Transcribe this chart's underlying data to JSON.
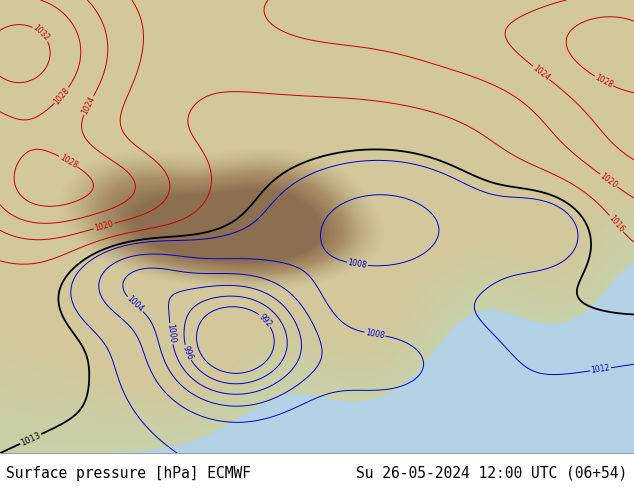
{
  "bottom_left_text": "Surface pressure [hPa] ECMWF",
  "bottom_right_text": "Su 26-05-2024 12:00 UTC (06+54)",
  "text_fontsize": 10.5,
  "text_color": "#000000",
  "background_color": "#ffffff",
  "fig_width": 6.34,
  "fig_height": 4.9,
  "ocean_color": "#b8d4e8",
  "land_base_color": [
    210,
    200,
    160
  ],
  "contour_blue_color": "#0000cc",
  "contour_red_color": "#cc0000",
  "contour_black_color": "#000000",
  "contour_lw_thin": 0.7,
  "contour_lw_thick": 1.3,
  "label_fontsize": 5.5
}
